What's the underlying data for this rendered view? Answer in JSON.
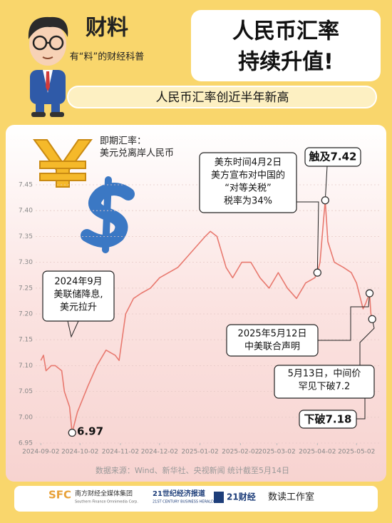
{
  "header": {
    "brand": "财料",
    "slogan": "有“料”的财经科普",
    "title": [
      "人民币汇率",
      "持续升值!"
    ],
    "subtitle": "人民币汇率创近半年新高"
  },
  "chart_data": {
    "type": "line",
    "title": [
      "即期汇率：",
      "美元兑离岸人民币"
    ],
    "color": "#e8796f",
    "x": [
      "2024-09-02",
      "2024-09-04",
      "2024-09-06",
      "2024-09-10",
      "2024-09-13",
      "2024-09-18",
      "2024-09-20",
      "2024-09-24",
      "2024-09-26",
      "2024-09-30",
      "2024-10-08",
      "2024-10-15",
      "2024-10-22",
      "2024-10-29",
      "2024-11-01",
      "2024-11-06",
      "2024-11-12",
      "2024-11-18",
      "2024-11-25",
      "2024-12-02",
      "2024-12-09",
      "2024-12-16",
      "2024-12-23",
      "2024-12-30",
      "2025-01-06",
      "2025-01-10",
      "2025-01-15",
      "2025-01-22",
      "2025-01-27",
      "2025-02-03",
      "2025-02-10",
      "2025-02-17",
      "2025-02-24",
      "2025-03-03",
      "2025-03-10",
      "2025-03-17",
      "2025-03-24",
      "2025-03-31",
      "2025-04-02",
      "2025-04-04",
      "2025-04-08",
      "2025-04-10",
      "2025-04-15",
      "2025-04-22",
      "2025-04-28",
      "2025-05-02",
      "2025-05-07",
      "2025-05-09",
      "2025-05-12",
      "2025-05-13",
      "2025-05-14"
    ],
    "values": [
      7.11,
      7.12,
      7.09,
      7.1,
      7.1,
      7.09,
      7.05,
      7.02,
      6.97,
      7.01,
      7.06,
      7.1,
      7.13,
      7.12,
      7.11,
      7.2,
      7.23,
      7.24,
      7.25,
      7.27,
      7.28,
      7.29,
      7.31,
      7.33,
      7.35,
      7.36,
      7.35,
      7.29,
      7.27,
      7.3,
      7.3,
      7.27,
      7.25,
      7.28,
      7.25,
      7.23,
      7.26,
      7.27,
      7.28,
      7.3,
      7.42,
      7.34,
      7.3,
      7.29,
      7.28,
      7.26,
      7.21,
      7.22,
      7.24,
      7.2,
      7.19
    ],
    "xlim": [
      "2024-08-29",
      "2025-05-21"
    ],
    "xticks": [
      "2024-09-02",
      "2024-10-02",
      "2024-11-02",
      "2024-12-02",
      "2025-01-02",
      "2025-02-02",
      "2025-03-02",
      "2025-04-02",
      "2025-05-02"
    ],
    "ylim": [
      6.95,
      7.45
    ],
    "yticks": [
      6.95,
      {
        "value": 7,
        "label": "7.00"
      },
      7.05,
      {
        "value": 7.1,
        "label": "7.10"
      },
      7.15,
      {
        "value": 7.2,
        "label": "7.20"
      },
      7.25,
      {
        "value": 7.3,
        "label": "7.30"
      },
      7.35,
      {
        "value": 7.4,
        "label": "7.40"
      },
      7.45
    ],
    "grid": true,
    "annotations": [
      {
        "lines": [
          "6.97"
        ]
      },
      {
        "lines": [
          "2024年9月",
          "美联储降息,",
          "美元拉升"
        ]
      },
      {
        "lines": [
          "美东时间4月2日",
          "美方宣布对中国的",
          "“对等关税”",
          "税率为34%"
        ]
      },
      {
        "lines": [
          "触及7.42"
        ]
      },
      {
        "lines": [
          "2025年5月12日",
          "中美联合声明"
        ]
      },
      {
        "lines": [
          "5月13日，中间价",
          "罕见下破7.2"
        ]
      },
      {
        "lines": [
          "下破7.18"
        ]
      }
    ]
  },
  "source": "数据来源：Wind、新华社、央视新闻 统计截至5月14日",
  "footer": {
    "sfc": "SFC",
    "sfc_name": "南方财经全媒体集团",
    "sfc_en": "Southern Finance Omnimedia Corp.",
    "herald": "21世纪经济报道",
    "herald_en": "21ST CENTURY BUSINESS HERALD",
    "caijing": "21财经",
    "studio": "数读工作室"
  }
}
